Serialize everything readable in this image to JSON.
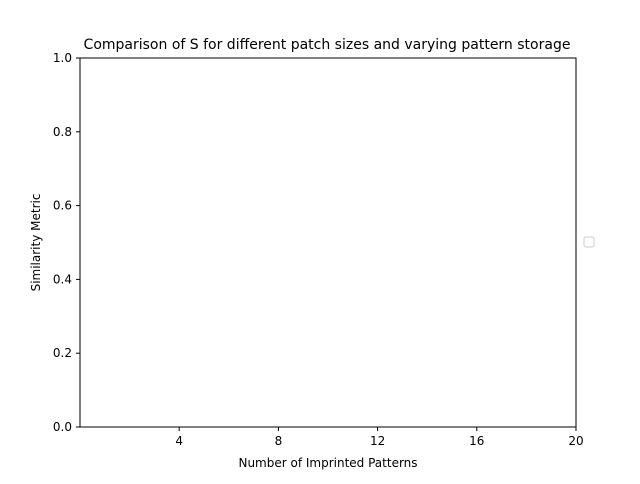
{
  "chart_data": {
    "type": "line",
    "title": "Comparison of S for different patch sizes and varying pattern storage",
    "xlabel": "Number of Imprinted Patterns",
    "ylabel": "Similarity Metric",
    "xlim": [
      0,
      20
    ],
    "ylim": [
      0.0,
      1.0
    ],
    "x_ticks": [
      4,
      8,
      12,
      16,
      20
    ],
    "x_tick_labels": [
      "4",
      "8",
      "12",
      "16",
      "20"
    ],
    "y_ticks": [
      0.0,
      0.2,
      0.4,
      0.6,
      0.8,
      1.0
    ],
    "y_tick_labels": [
      "0.0",
      "0.2",
      "0.4",
      "0.6",
      "0.8",
      "1.0"
    ],
    "series": [],
    "legend": {
      "placement": "right, outside plot area",
      "entries": []
    },
    "grid": false
  }
}
